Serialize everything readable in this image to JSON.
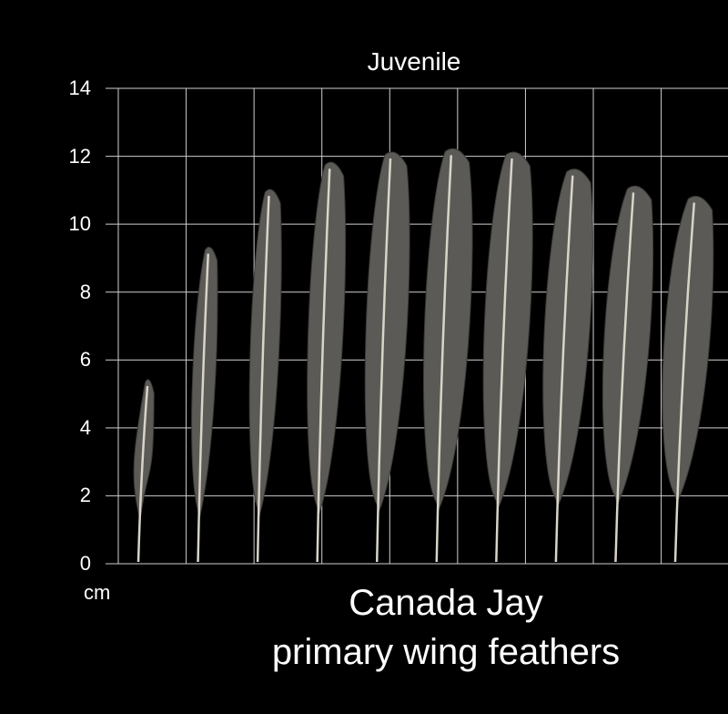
{
  "image": {
    "panel_title": "Juvenile",
    "axis_unit": "cm",
    "caption_line1": "Canada Jay",
    "caption_line2": "primary wing feathers",
    "y_ticks": [
      "0",
      "2",
      "4",
      "6",
      "8",
      "10",
      "12",
      "14"
    ],
    "y_range": [
      0,
      14
    ],
    "feather_lengths_cm": [
      5.5,
      9.4,
      11.1,
      11.9,
      12.2,
      12.3,
      12.2,
      11.7,
      11.2,
      10.9
    ],
    "colors": {
      "background": "#000000",
      "grid": "#cfcfcf",
      "feather": "#5b5a56",
      "feather_edge": "#3a3936",
      "shaft": "#d8d4c8"
    }
  }
}
